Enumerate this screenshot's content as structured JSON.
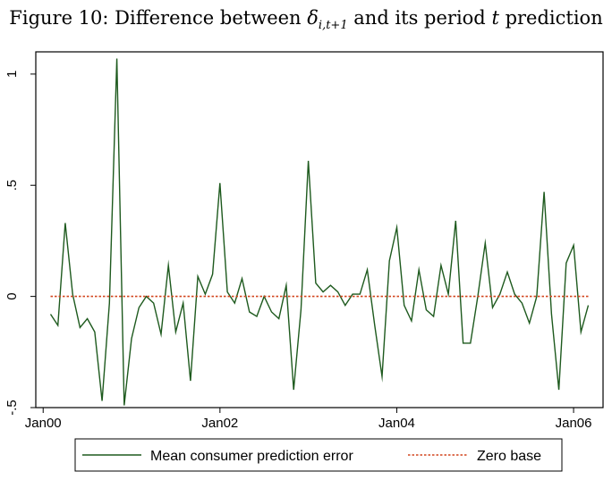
{
  "chart_data": {
    "type": "line",
    "title_prefix": "Figure 10:  Difference between ",
    "title_symbol": "δ",
    "title_subscript": "i,t+1",
    "title_mid": " and its period ",
    "title_var": "t",
    "title_suffix": " prediction",
    "xlabel": "",
    "ylabel": "",
    "x_unit": "month",
    "xlim": [
      -1,
      76
    ],
    "ylim": [
      -0.5,
      1.1
    ],
    "x_ticks": [
      {
        "label": "Jan00",
        "value": 0
      },
      {
        "label": "Jan02",
        "value": 24
      },
      {
        "label": "Jan04",
        "value": 48
      },
      {
        "label": "Jan06",
        "value": 72
      }
    ],
    "y_ticks": [
      {
        "label": "-.5",
        "value": -0.5
      },
      {
        "label": "0",
        "value": 0
      },
      {
        "label": ".5",
        "value": 0.5
      },
      {
        "label": "1",
        "value": 1
      }
    ],
    "grid": false,
    "legend_position": "bottom",
    "series": [
      {
        "name": "Mean consumer prediction error",
        "color": "#1e5a1e",
        "style": "solid",
        "x_start": 1,
        "values": [
          -0.08,
          -0.13,
          0.33,
          0.01,
          -0.14,
          -0.1,
          -0.16,
          -0.47,
          -0.03,
          1.07,
          -0.49,
          -0.19,
          -0.05,
          0.0,
          -0.03,
          -0.17,
          0.14,
          -0.16,
          -0.03,
          -0.38,
          0.09,
          0.01,
          0.1,
          0.51,
          0.02,
          -0.03,
          0.08,
          -0.07,
          -0.09,
          0.0,
          -0.07,
          -0.1,
          0.05,
          -0.42,
          -0.06,
          0.61,
          0.06,
          0.02,
          0.05,
          0.02,
          -0.04,
          0.01,
          0.01,
          0.12,
          -0.13,
          -0.36,
          0.16,
          0.31,
          -0.04,
          -0.11,
          0.12,
          -0.06,
          -0.09,
          0.14,
          0.01,
          0.34,
          -0.21,
          -0.21,
          0.0,
          0.24,
          -0.05,
          0.01,
          0.11,
          0.01,
          -0.03,
          -0.12,
          0.0,
          0.47,
          -0.08,
          -0.42,
          0.15,
          0.23,
          -0.16,
          -0.04
        ]
      },
      {
        "name": "Zero base",
        "color": "#d2451e",
        "style": "dotted",
        "x": [
          1,
          74
        ],
        "values": [
          0,
          0
        ]
      }
    ]
  }
}
